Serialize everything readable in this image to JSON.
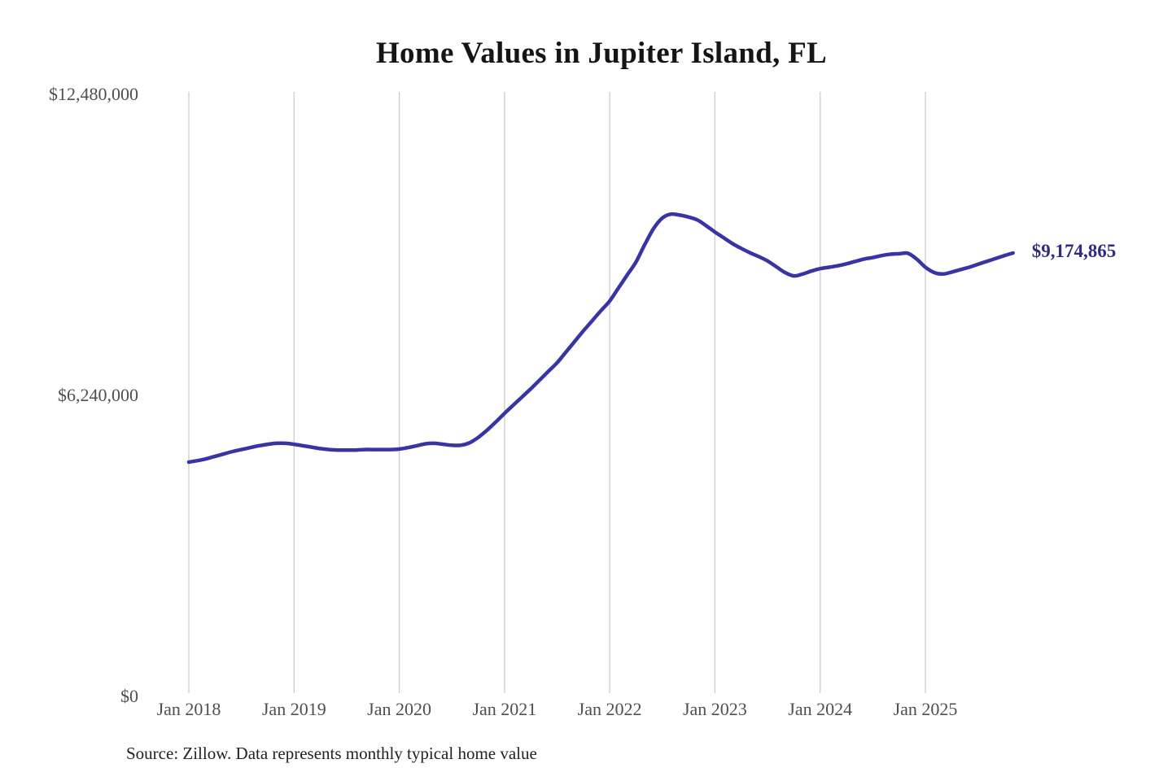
{
  "chart_data": {
    "type": "line",
    "title": "Home Values in Jupiter Island, FL",
    "source_note": "Source: Zillow. Data represents monthly typical home value",
    "end_label": "$9,174,865",
    "end_value": 9174865,
    "xlabel": "",
    "ylabel": "",
    "ylim": [
      0,
      12480000
    ],
    "grid": "vertical-only",
    "legend": "none",
    "y_ticks": [
      {
        "value": 0,
        "label": "$0"
      },
      {
        "value": 6240000,
        "label": "$6,240,000"
      },
      {
        "value": 12480000,
        "label": "$12,480,000"
      }
    ],
    "x_ticks": [
      {
        "month_index": 0,
        "label": "Jan 2018"
      },
      {
        "month_index": 12,
        "label": "Jan 2019"
      },
      {
        "month_index": 24,
        "label": "Jan 2020"
      },
      {
        "month_index": 36,
        "label": "Jan 2021"
      },
      {
        "month_index": 48,
        "label": "Jan 2022"
      },
      {
        "month_index": 60,
        "label": "Jan 2023"
      },
      {
        "month_index": 72,
        "label": "Jan 2024"
      },
      {
        "month_index": 84,
        "label": "Jan 2025"
      }
    ],
    "x_months": [
      "2018-01",
      "2018-02",
      "2018-03",
      "2018-04",
      "2018-05",
      "2018-06",
      "2018-07",
      "2018-08",
      "2018-09",
      "2018-10",
      "2018-11",
      "2018-12",
      "2019-01",
      "2019-02",
      "2019-03",
      "2019-04",
      "2019-05",
      "2019-06",
      "2019-07",
      "2019-08",
      "2019-09",
      "2019-10",
      "2019-11",
      "2019-12",
      "2020-01",
      "2020-02",
      "2020-03",
      "2020-04",
      "2020-05",
      "2020-06",
      "2020-07",
      "2020-08",
      "2020-09",
      "2020-10",
      "2020-11",
      "2020-12",
      "2021-01",
      "2021-02",
      "2021-03",
      "2021-04",
      "2021-05",
      "2021-06",
      "2021-07",
      "2021-08",
      "2021-09",
      "2021-10",
      "2021-11",
      "2021-12",
      "2022-01",
      "2022-02",
      "2022-03",
      "2022-04",
      "2022-05",
      "2022-06",
      "2022-07",
      "2022-08",
      "2022-09",
      "2022-10",
      "2022-11",
      "2022-12",
      "2023-01",
      "2023-02",
      "2023-03",
      "2023-04",
      "2023-05",
      "2023-06",
      "2023-07",
      "2023-08",
      "2023-09",
      "2023-10",
      "2023-11",
      "2023-12",
      "2024-01",
      "2024-02",
      "2024-03",
      "2024-04",
      "2024-05",
      "2024-06",
      "2024-07",
      "2024-08",
      "2024-09",
      "2024-10",
      "2024-11",
      "2024-12",
      "2025-01",
      "2025-02",
      "2025-03",
      "2025-04",
      "2025-05",
      "2025-06",
      "2025-07",
      "2025-08",
      "2025-09",
      "2025-10",
      "2025-11"
    ],
    "values": [
      4840000,
      4870000,
      4910000,
      4960000,
      5010000,
      5060000,
      5100000,
      5140000,
      5180000,
      5210000,
      5230000,
      5230000,
      5210000,
      5180000,
      5150000,
      5120000,
      5100000,
      5090000,
      5090000,
      5090000,
      5100000,
      5100000,
      5100000,
      5100000,
      5110000,
      5140000,
      5180000,
      5220000,
      5230000,
      5210000,
      5190000,
      5190000,
      5240000,
      5350000,
      5500000,
      5670000,
      5850000,
      6020000,
      6190000,
      6360000,
      6540000,
      6720000,
      6900000,
      7120000,
      7340000,
      7560000,
      7770000,
      7980000,
      8180000,
      8450000,
      8720000,
      8990000,
      9350000,
      9680000,
      9900000,
      9980000,
      9960000,
      9920000,
      9860000,
      9740000,
      9610000,
      9490000,
      9370000,
      9270000,
      9180000,
      9100000,
      9010000,
      8890000,
      8770000,
      8700000,
      8740000,
      8800000,
      8850000,
      8880000,
      8910000,
      8950000,
      9000000,
      9050000,
      9080000,
      9120000,
      9150000,
      9160000,
      9170000,
      9050000,
      8880000,
      8770000,
      8740000,
      8780000,
      8830000,
      8880000,
      8940000,
      9000000,
      9060000,
      9120000,
      9174865
    ],
    "colors": {
      "line": "#3834a4",
      "end_label": "#2d2b85",
      "grid": "#cccccc",
      "axis_text": "#4f4f4f",
      "title_text": "#151515",
      "source_text": "#222222"
    }
  }
}
